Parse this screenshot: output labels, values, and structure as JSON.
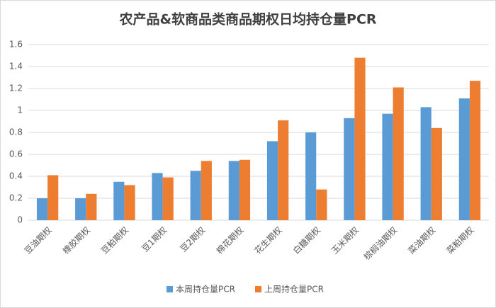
{
  "chart_data": {
    "type": "bar",
    "title": "农产品&软商品类商品期权日均持仓量PCR",
    "categories": [
      "豆油期权",
      "橡胶期权",
      "豆粕期权",
      "豆1期权",
      "豆2期权",
      "棉花期权",
      "花生期权",
      "白糖期权",
      "玉米期权",
      "棕榈油期权",
      "菜油期权",
      "菜粕期权"
    ],
    "series": [
      {
        "name": "本周持仓量PCR",
        "color": "#5b9bd5",
        "values": [
          0.2,
          0.2,
          0.35,
          0.43,
          0.45,
          0.54,
          0.72,
          0.8,
          0.93,
          0.97,
          1.03,
          1.11
        ]
      },
      {
        "name": "上周持仓量PCR",
        "color": "#ed7d31",
        "values": [
          0.41,
          0.24,
          0.32,
          0.39,
          0.54,
          0.55,
          0.91,
          0.28,
          1.48,
          1.21,
          0.84,
          1.27
        ]
      }
    ],
    "ylim": [
      0,
      1.6
    ],
    "yticks": [
      0,
      0.2,
      0.4,
      0.6,
      0.8,
      1,
      1.2,
      1.4,
      1.6
    ],
    "grid": true,
    "legend": "bottom"
  }
}
